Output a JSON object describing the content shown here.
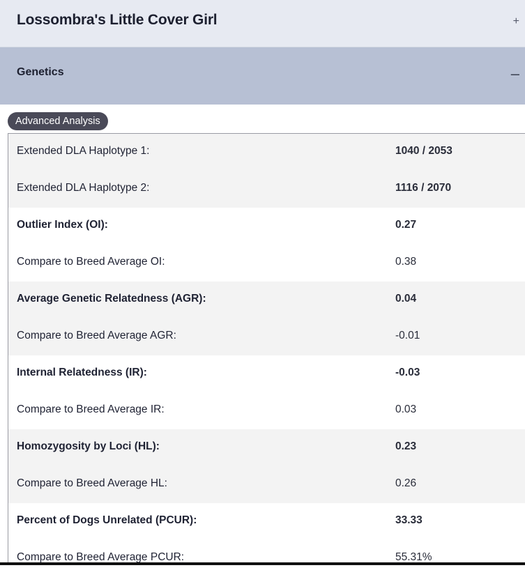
{
  "header": {
    "dog_name": "Lossombra's Little Cover Girl",
    "expand_symbol": "+"
  },
  "genetics_section": {
    "title": "Genetics",
    "collapse_symbol": "–"
  },
  "advanced_analysis_label": "Advanced Analysis",
  "rows": [
    {
      "label": "Extended DLA Haplotype 1:",
      "value": "1040 / 2053"
    },
    {
      "label": "Extended DLA Haplotype 2:",
      "value": "1116 / 2070"
    },
    {
      "label": "Outlier Index (OI):",
      "value": "0.27"
    },
    {
      "label": "Compare to Breed Average OI:",
      "value": "0.38"
    },
    {
      "label": "Average Genetic Relatedness (AGR):",
      "value": "0.04"
    },
    {
      "label": "Compare to Breed Average AGR:",
      "value": "-0.01"
    },
    {
      "label": "Internal Relatedness (IR):",
      "value": "-0.03"
    },
    {
      "label": "Compare to Breed Average IR:",
      "value": "0.03"
    },
    {
      "label": "Homozygosity by Loci (HL):",
      "value": "0.23"
    },
    {
      "label": "Compare to Breed Average HL:",
      "value": "0.26"
    },
    {
      "label": "Percent of Dogs Unrelated (PCUR):",
      "value": "33.33"
    },
    {
      "label": "Compare to Breed Average PCUR:",
      "value": "55.31%"
    }
  ]
}
